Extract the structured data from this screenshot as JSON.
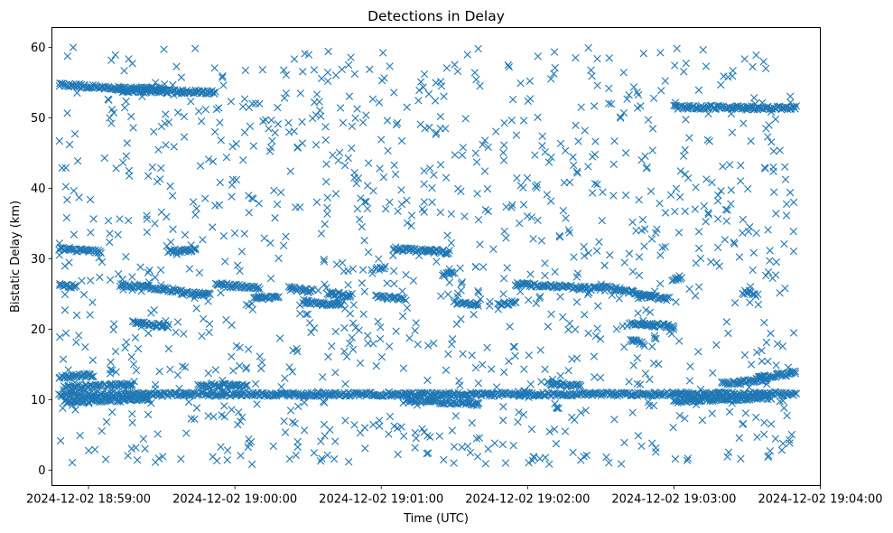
{
  "chart_data": {
    "type": "scatter",
    "title": "Detections in Delay",
    "xlabel": "Time (UTC)",
    "ylabel": "Bistatic Delay (km)",
    "marker": "x",
    "color": "#1f77b4",
    "grid": false,
    "x_ticks": [
      "2024-12-02 18:59:00",
      "2024-12-02 19:00:00",
      "2024-12-02 19:01:00",
      "2024-12-02 19:02:00",
      "2024-12-02 19:03:00",
      "2024-12-02 19:04:00"
    ],
    "y_ticks": [
      0,
      10,
      20,
      30,
      40,
      50,
      60
    ],
    "xlim": [
      "2024-12-02 18:58:45",
      "2024-12-02 19:04:00"
    ],
    "ylim": [
      -2.2,
      62.8
    ],
    "data_range": {
      "start": "2024-12-02 18:58:48",
      "end": "2024-12-02 19:03:50"
    },
    "tracks": [
      {
        "x": [
          "2024-12-02 18:58:48",
          "2024-12-02 18:59:12"
        ],
        "y": [
          54.7,
          54.2
        ]
      },
      {
        "x": [
          "2024-12-02 18:59:12",
          "2024-12-02 18:59:32"
        ],
        "y": [
          54.1,
          54.1
        ]
      },
      {
        "x": [
          "2024-12-02 18:59:12",
          "2024-12-02 18:59:52"
        ],
        "y": [
          53.9,
          53.6
        ]
      },
      {
        "x": [
          "2024-12-02 19:03:00",
          "2024-12-02 19:03:50"
        ],
        "y": [
          51.5,
          51.4
        ]
      },
      {
        "x": [
          "2024-12-02 18:58:48",
          "2024-12-02 18:59:05"
        ],
        "y": [
          31.5,
          30.9
        ]
      },
      {
        "x": [
          "2024-12-02 18:59:33",
          "2024-12-02 18:59:44"
        ],
        "y": [
          31.0,
          31.3
        ]
      },
      {
        "x": [
          "2024-12-02 19:01:05",
          "2024-12-02 19:01:28"
        ],
        "y": [
          31.4,
          30.9
        ]
      },
      {
        "x": [
          "2024-12-02 19:01:25",
          "2024-12-02 19:01:30"
        ],
        "y": [
          27.6,
          28.0
        ]
      },
      {
        "x": [
          "2024-12-02 19:00:58",
          "2024-12-02 19:01:01"
        ],
        "y": [
          28.5,
          28.5
        ]
      },
      {
        "x": [
          "2024-12-02 19:03:00",
          "2024-12-02 19:03:03"
        ],
        "y": [
          27.2,
          27.2
        ]
      },
      {
        "x": [
          "2024-12-02 18:58:48",
          "2024-12-02 18:58:55"
        ],
        "y": [
          26.3,
          26.0
        ]
      },
      {
        "x": [
          "2024-12-02 18:59:13",
          "2024-12-02 18:59:30"
        ],
        "y": [
          26.3,
          25.8
        ]
      },
      {
        "x": [
          "2024-12-02 18:59:30",
          "2024-12-02 18:59:38"
        ],
        "y": [
          25.7,
          25.4
        ]
      },
      {
        "x": [
          "2024-12-02 18:59:38",
          "2024-12-02 18:59:50"
        ],
        "y": [
          25.1,
          24.9
        ]
      },
      {
        "x": [
          "2024-12-02 18:59:52",
          "2024-12-02 19:00:10"
        ],
        "y": [
          26.4,
          25.8
        ]
      },
      {
        "x": [
          "2024-12-02 19:00:08",
          "2024-12-02 19:00:18"
        ],
        "y": [
          24.6,
          24.4
        ]
      },
      {
        "x": [
          "2024-12-02 19:00:22",
          "2024-12-02 19:00:32"
        ],
        "y": [
          25.8,
          25.4
        ]
      },
      {
        "x": [
          "2024-12-02 19:00:28",
          "2024-12-02 19:00:44"
        ],
        "y": [
          23.9,
          23.5
        ]
      },
      {
        "x": [
          "2024-12-02 19:00:38",
          "2024-12-02 19:00:48"
        ],
        "y": [
          25.0,
          24.8
        ]
      },
      {
        "x": [
          "2024-12-02 19:00:58",
          "2024-12-02 19:01:10"
        ],
        "y": [
          24.6,
          24.3
        ]
      },
      {
        "x": [
          "2024-12-02 19:01:30",
          "2024-12-02 19:01:40"
        ],
        "y": [
          23.8,
          23.5
        ]
      },
      {
        "x": [
          "2024-12-02 19:01:48",
          "2024-12-02 19:01:55"
        ],
        "y": [
          23.5,
          23.8
        ]
      },
      {
        "x": [
          "2024-12-02 19:01:55",
          "2024-12-02 19:02:30"
        ],
        "y": [
          26.4,
          25.7
        ]
      },
      {
        "x": [
          "2024-12-02 19:02:30",
          "2024-12-02 19:02:45"
        ],
        "y": [
          26.2,
          25.1
        ]
      },
      {
        "x": [
          "2024-12-02 19:02:45",
          "2024-12-02 19:02:58"
        ],
        "y": [
          24.8,
          24.3
        ]
      },
      {
        "x": [
          "2024-12-02 19:03:28",
          "2024-12-02 19:03:33"
        ],
        "y": [
          25.2,
          25.2
        ]
      },
      {
        "x": [
          "2024-12-02 18:59:18",
          "2024-12-02 18:59:33"
        ],
        "y": [
          21.0,
          20.4
        ]
      },
      {
        "x": [
          "2024-12-02 19:02:42",
          "2024-12-02 19:03:00"
        ],
        "y": [
          20.8,
          20.4
        ]
      },
      {
        "x": [
          "2024-12-02 19:02:42",
          "2024-12-02 19:02:48"
        ],
        "y": [
          18.6,
          17.9
        ]
      },
      {
        "x": [
          "2024-12-02 18:58:48",
          "2024-12-02 18:59:02"
        ],
        "y": [
          13.2,
          13.5
        ]
      },
      {
        "x": [
          "2024-12-02 18:58:50",
          "2024-12-02 18:59:18"
        ],
        "y": [
          11.8,
          12.1
        ]
      },
      {
        "x": [
          "2024-12-02 18:59:45",
          "2024-12-02 19:00:05"
        ],
        "y": [
          12.1,
          11.9
        ]
      },
      {
        "x": [
          "2024-12-02 19:02:08",
          "2024-12-02 19:02:22"
        ],
        "y": [
          12.3,
          12.0
        ]
      },
      {
        "x": [
          "2024-12-02 19:03:20",
          "2024-12-02 19:03:38"
        ],
        "y": [
          12.2,
          12.9
        ]
      },
      {
        "x": [
          "2024-12-02 19:03:34",
          "2024-12-02 19:03:50"
        ],
        "y": [
          13.1,
          13.8
        ]
      },
      {
        "x": [
          "2024-12-02 18:58:48",
          "2024-12-02 19:03:50"
        ],
        "y": [
          10.7,
          10.8
        ]
      },
      {
        "x": [
          "2024-12-02 18:58:50",
          "2024-12-02 18:59:25"
        ],
        "y": [
          9.7,
          10.1
        ]
      },
      {
        "x": [
          "2024-12-02 19:01:10",
          "2024-12-02 19:01:40"
        ],
        "y": [
          9.9,
          9.4
        ]
      },
      {
        "x": [
          "2024-12-02 19:03:00",
          "2024-12-02 19:03:40"
        ],
        "y": [
          9.8,
          10.3
        ]
      }
    ]
  }
}
